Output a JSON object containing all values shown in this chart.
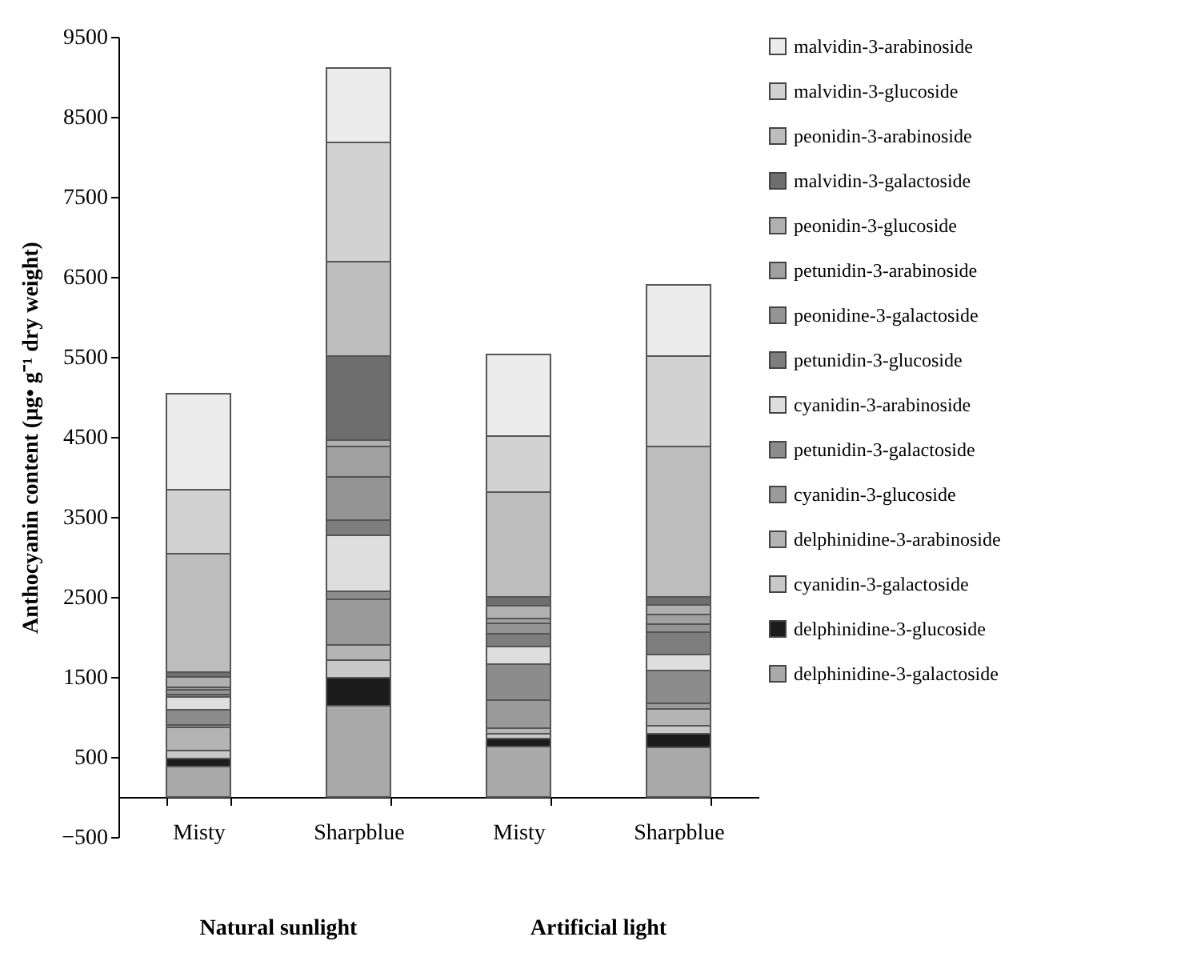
{
  "chart_data": {
    "type": "bar",
    "stacked": true,
    "ylabel": "Anthocyanin content (μg• g⁻¹ dry weight)",
    "categories": [
      "Misty",
      "Sharpblue",
      "Misty",
      "Sharpblue"
    ],
    "annotations": [
      "Natural sunlight",
      "Artificial light"
    ],
    "ylim": [
      -500,
      9500
    ],
    "yticks": [
      -500,
      500,
      1500,
      2500,
      3500,
      4500,
      5500,
      6500,
      7500,
      8500,
      9500
    ],
    "grid": false,
    "legend": "right",
    "series": [
      {
        "name": "delphinidine-3-galactoside",
        "color": "#a9a9a9",
        "values": [
          380,
          1140,
          630,
          620
        ]
      },
      {
        "name": "delphinidine-3-glucoside",
        "color": "#1c1c1c",
        "values": [
          100,
          350,
          100,
          170
        ]
      },
      {
        "name": "cyanidin-3-galactoside",
        "color": "#c8c8c8",
        "values": [
          100,
          220,
          60,
          100
        ]
      },
      {
        "name": "delphinidine-3-arabinoside",
        "color": "#b4b4b4",
        "values": [
          290,
          190,
          70,
          210
        ]
      },
      {
        "name": "cyanidin-3-glucoside",
        "color": "#9a9a9a",
        "values": [
          30,
          570,
          350,
          70
        ]
      },
      {
        "name": "petunidin-3-galactoside",
        "color": "#8c8c8c",
        "values": [
          190,
          100,
          450,
          410
        ]
      },
      {
        "name": "cyanidin-3-arabinoside",
        "color": "#dedede",
        "values": [
          160,
          700,
          220,
          200
        ]
      },
      {
        "name": "petunidin-3-glucoside",
        "color": "#7e7e7e",
        "values": [
          30,
          190,
          160,
          280
        ]
      },
      {
        "name": "peonidine-3-galactoside",
        "color": "#949494",
        "values": [
          60,
          540,
          130,
          100
        ]
      },
      {
        "name": "petunidin-3-arabinoside",
        "color": "#a0a0a0",
        "values": [
          30,
          380,
          60,
          120
        ]
      },
      {
        "name": "peonidin-3-glucoside",
        "color": "#b0b0b0",
        "values": [
          130,
          80,
          160,
          120
        ]
      },
      {
        "name": "malvidin-3-galactoside",
        "color": "#6e6e6e",
        "values": [
          60,
          1050,
          110,
          100
        ]
      },
      {
        "name": "peonidin-3-arabinoside",
        "color": "#bdbdbd",
        "values": [
          1480,
          1180,
          1310,
          1880
        ]
      },
      {
        "name": "malvidin-3-glucoside",
        "color": "#d2d2d2",
        "values": [
          800,
          1490,
          700,
          1130
        ]
      },
      {
        "name": "malvidin-3-arabinoside",
        "color": "#ececec",
        "values": [
          1200,
          930,
          1020,
          890
        ]
      }
    ]
  }
}
